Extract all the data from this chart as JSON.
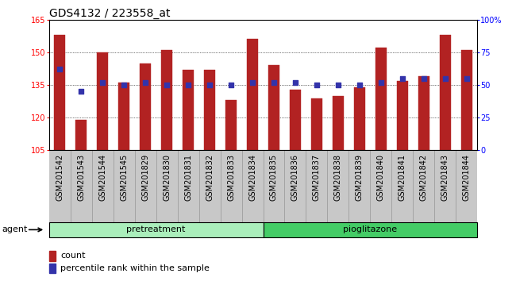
{
  "title": "GDS4132 / 223558_at",
  "samples": [
    "GSM201542",
    "GSM201543",
    "GSM201544",
    "GSM201545",
    "GSM201829",
    "GSM201830",
    "GSM201831",
    "GSM201832",
    "GSM201833",
    "GSM201834",
    "GSM201835",
    "GSM201836",
    "GSM201837",
    "GSM201838",
    "GSM201839",
    "GSM201840",
    "GSM201841",
    "GSM201842",
    "GSM201843",
    "GSM201844"
  ],
  "counts": [
    158,
    119,
    150,
    136,
    145,
    151,
    142,
    142,
    128,
    156,
    144,
    133,
    129,
    130,
    134,
    152,
    137,
    139,
    158,
    151
  ],
  "percentiles": [
    62,
    45,
    52,
    50,
    52,
    50,
    50,
    50,
    50,
    52,
    52,
    52,
    50,
    50,
    50,
    52,
    55,
    55,
    55,
    55
  ],
  "ylim_left": [
    105,
    165
  ],
  "ylim_right": [
    0,
    100
  ],
  "yticks_left": [
    105,
    120,
    135,
    150,
    165
  ],
  "yticks_right": [
    0,
    25,
    50,
    75,
    100
  ],
  "ytick_labels_right": [
    "0",
    "25",
    "50",
    "75",
    "100%"
  ],
  "bar_color": "#b22222",
  "percentile_color": "#3333aa",
  "groups": [
    {
      "label": "pretreatment",
      "start": 0,
      "end": 10,
      "color": "#aaeebb"
    },
    {
      "label": "pioglitazone",
      "start": 10,
      "end": 20,
      "color": "#44cc66"
    }
  ],
  "group_row_label": "agent",
  "legend_count_label": "count",
  "legend_percentile_label": "percentile rank within the sample",
  "xtick_bg_color": "#c8c8c8",
  "plot_bg_color": "#c8c8c8",
  "title_fontsize": 10,
  "tick_fontsize": 7,
  "bar_width": 0.5
}
